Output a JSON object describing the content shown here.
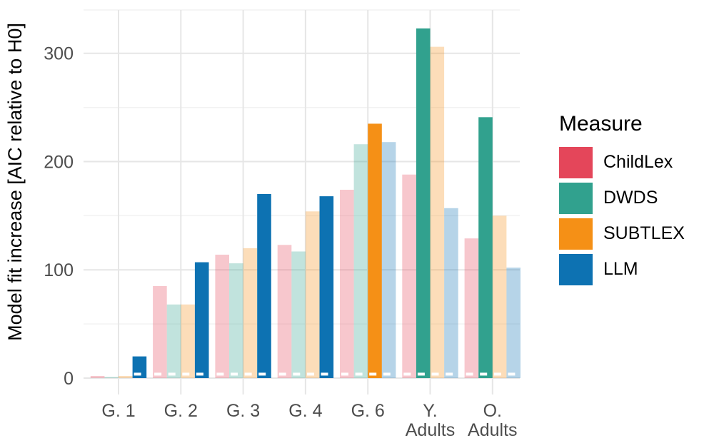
{
  "figure": {
    "background": "#FFFFFF",
    "grid_major_color": "#E6E6E6",
    "grid_minor_color": "#F2F2F2",
    "tick_label_color": "#4D4D4D",
    "axis_title_color": "#000000"
  },
  "chart_data": {
    "type": "bar",
    "title": "",
    "xlabel": "",
    "ylabel": "Model fit increase [AIC relative to H0]",
    "categories": [
      "G. 1",
      "G. 2",
      "G. 3",
      "G. 4",
      "G. 6",
      "Y.\nAdults",
      "O.\nAdults"
    ],
    "yticks": [
      0,
      100,
      200,
      300
    ],
    "ylim": [
      0,
      340
    ],
    "grid": true,
    "legend_position": "right",
    "legend_title": "Measure",
    "series": [
      {
        "name": "ChildLex",
        "color": "#E4465A",
        "values": [
          2,
          85,
          114,
          123,
          174,
          188,
          129
        ]
      },
      {
        "name": "DWDS",
        "color": "#31A18E",
        "values": [
          1,
          68,
          106,
          117,
          216,
          323,
          241
        ]
      },
      {
        "name": "SUBTLEX",
        "color": "#F59016",
        "values": [
          2,
          68,
          120,
          154,
          235,
          306,
          150
        ]
      },
      {
        "name": "LLM",
        "color": "#0D72B2",
        "values": [
          20,
          107,
          170,
          168,
          218,
          157,
          102
        ]
      }
    ],
    "highlighted_series_per_category": [
      "LLM",
      "LLM",
      "LLM",
      "LLM",
      "SUBTLEX",
      "DWDS",
      "DWDS"
    ],
    "faded_opacity": 0.3,
    "threshold_line": {
      "value": 3,
      "color": "#FFFFFF",
      "style": "dashed"
    }
  }
}
